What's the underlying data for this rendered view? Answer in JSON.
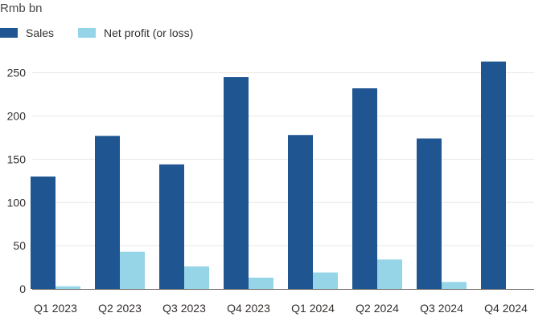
{
  "chart_data": {
    "type": "bar",
    "unit_label": "Rmb bn",
    "categories": [
      "Q1 2023",
      "Q2 2023",
      "Q3 2023",
      "Q4 2023",
      "Q1 2024",
      "Q2 2024",
      "Q3 2024",
      "Q4 2024"
    ],
    "series": [
      {
        "name": "Sales",
        "color": "#1f5591",
        "values": [
          130,
          177,
          144,
          245,
          178,
          232,
          174,
          263
        ]
      },
      {
        "name": "Net profit (or loss)",
        "color": "#96d4e8",
        "values": [
          3,
          43,
          26,
          13,
          19,
          34,
          8,
          -1
        ]
      }
    ],
    "ylim": [
      0,
      265
    ],
    "yticks": [
      0,
      50,
      100,
      150,
      200,
      250
    ],
    "grid": true,
    "legend": "top-left"
  }
}
